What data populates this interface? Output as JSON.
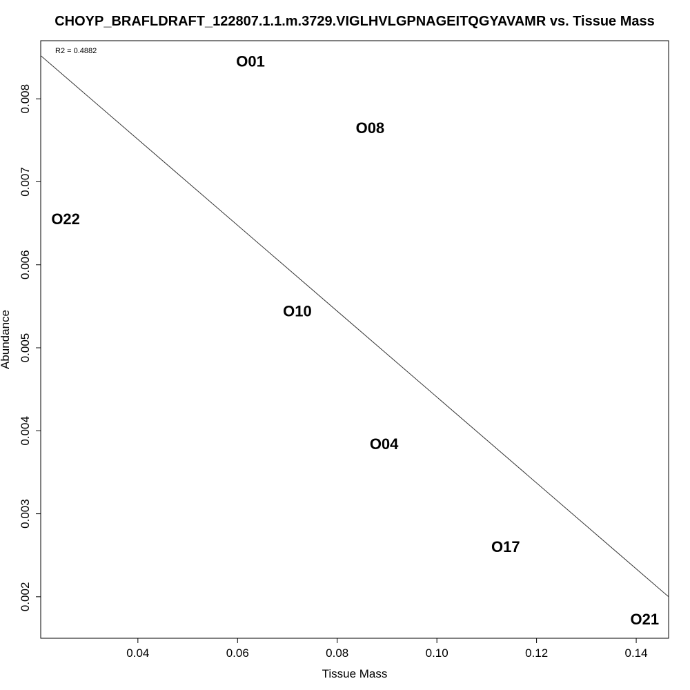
{
  "chart_data": {
    "type": "scatter",
    "title": "CHOYP_BRAFLDRAFT_122807.1.1.m.3729.VIGLHVLGPNAGEITQGYAVAMR vs. Tissue Mass",
    "xlabel": "Tissue Mass",
    "ylabel": "Abundance",
    "annotation": "R2 = 0.4882",
    "xlim": [
      0.0205,
      0.1465
    ],
    "ylim": [
      0.0015,
      0.0087
    ],
    "x_ticks": [
      0.04,
      0.06,
      0.08,
      0.1,
      0.12,
      0.14
    ],
    "x_tick_labels": [
      "0.04",
      "0.06",
      "0.08",
      "0.10",
      "0.12",
      "0.14"
    ],
    "y_ticks": [
      0.002,
      0.003,
      0.004,
      0.005,
      0.006,
      0.007,
      0.008
    ],
    "y_tick_labels": [
      "0.002",
      "0.003",
      "0.004",
      "0.005",
      "0.006",
      "0.007",
      "0.008"
    ],
    "points": [
      {
        "label": "O01",
        "x": 0.0626,
        "y": 0.00845
      },
      {
        "label": "O08",
        "x": 0.0866,
        "y": 0.00765
      },
      {
        "label": "O22",
        "x": 0.0255,
        "y": 0.00655
      },
      {
        "label": "O10",
        "x": 0.072,
        "y": 0.00544
      },
      {
        "label": "O04",
        "x": 0.0894,
        "y": 0.00384
      },
      {
        "label": "O17",
        "x": 0.1138,
        "y": 0.0026
      },
      {
        "label": "O21",
        "x": 0.1417,
        "y": 0.00173
      }
    ],
    "fit_line": {
      "x": [
        0.0205,
        0.1465
      ],
      "y": [
        0.00852,
        0.002
      ]
    },
    "grid": false,
    "legend": "none"
  }
}
